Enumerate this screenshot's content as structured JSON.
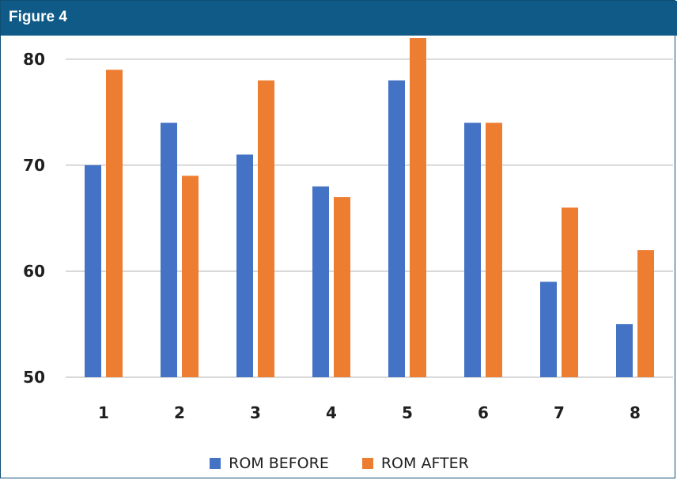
{
  "figure": {
    "title": "Figure 4"
  },
  "colors": {
    "header_bg": "#0f5a86",
    "before": "#4472c4",
    "after": "#ed7d31",
    "grid": "#d9d9d9"
  },
  "chart_data": {
    "type": "bar",
    "categories": [
      "1",
      "2",
      "3",
      "4",
      "5",
      "6",
      "7",
      "8"
    ],
    "series": [
      {
        "name": "ROM BEFORE",
        "values": [
          70,
          74,
          71,
          68,
          78,
          74,
          59,
          55
        ]
      },
      {
        "name": "ROM AFTER",
        "values": [
          79,
          69,
          78,
          67,
          82,
          74,
          66,
          62
        ]
      }
    ],
    "ylim": [
      50,
      82
    ],
    "yticks": [
      50,
      60,
      70,
      80
    ],
    "grid": true,
    "legend_position": "bottom",
    "title": "",
    "xlabel": "",
    "ylabel": ""
  }
}
